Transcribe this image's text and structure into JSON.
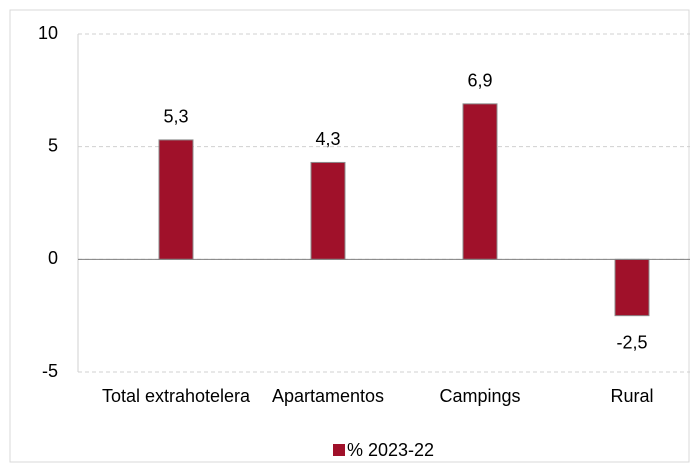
{
  "chart_data": {
    "type": "bar",
    "categories": [
      "Total extrahotelera",
      "Apartamentos",
      "Campings",
      "Rural"
    ],
    "series": [
      {
        "name": "% 2023-22",
        "color": "#a0112a",
        "values": [
          5.3,
          4.3,
          6.9,
          -2.5
        ],
        "value_labels": [
          "5,3",
          "4,3",
          "6,9",
          "-2,5"
        ]
      }
    ],
    "ylim": [
      -5,
      10
    ],
    "yticks": [
      -5,
      0,
      5,
      10
    ],
    "grid": true,
    "legend": "bottom"
  }
}
